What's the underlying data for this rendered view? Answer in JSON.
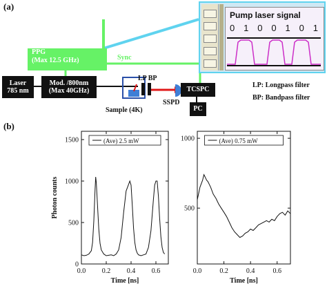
{
  "panel_a": {
    "label": "(a)",
    "ppg": {
      "line1": "PPG",
      "line2": "(Max 12.5 GHz)"
    },
    "sync": "Sync",
    "laser": {
      "line1": "Laser",
      "line2": "785 nm"
    },
    "modulator": {
      "line1": "Mod. /800nm",
      "line2": "(Max 40GHz)"
    },
    "sample": "Sample (4K)",
    "filters": "LP BP",
    "detector": "SSPD",
    "tcspc": "TCSPC",
    "pc": "PC",
    "legend": {
      "lp": "LP:  Longpass filter",
      "bp": "BP:  Bandpass filter"
    },
    "inset": {
      "title": "Pump laser signal",
      "bits": [
        "0",
        "1",
        "0",
        "0",
        "1",
        "0",
        "1"
      ]
    },
    "colors": {
      "ppg": "#66f266",
      "sync_line": "#66f266",
      "link": "#5fd3ef",
      "beam": "#e01818",
      "pulse": "#cc2ec8"
    }
  },
  "panel_b": {
    "label": "(b)"
  },
  "chart_data": [
    {
      "type": "line",
      "legend": "(Ave) 2.5 mW",
      "xlabel": "Time [ns]",
      "ylabel": "Photon counts",
      "xlim": [
        0.0,
        0.7
      ],
      "ylim": [
        0,
        1600
      ],
      "xticks": [
        "0.0",
        "0.2",
        "0.4",
        "0.6"
      ],
      "yticks": [
        "0",
        "500",
        "1000",
        "1500"
      ],
      "x": [
        0.0,
        0.02,
        0.04,
        0.06,
        0.08,
        0.09,
        0.1,
        0.11,
        0.115,
        0.12,
        0.13,
        0.14,
        0.15,
        0.16,
        0.18,
        0.2,
        0.22,
        0.24,
        0.26,
        0.28,
        0.3,
        0.32,
        0.34,
        0.36,
        0.38,
        0.39,
        0.4,
        0.41,
        0.42,
        0.43,
        0.44,
        0.45,
        0.46,
        0.47,
        0.48,
        0.5,
        0.52,
        0.54,
        0.56,
        0.58,
        0.59,
        0.6,
        0.61,
        0.62,
        0.63,
        0.64,
        0.65,
        0.66,
        0.67
      ],
      "y": [
        110,
        100,
        105,
        120,
        160,
        260,
        520,
        900,
        1050,
        980,
        700,
        420,
        250,
        170,
        120,
        100,
        105,
        110,
        100,
        120,
        170,
        320,
        620,
        880,
        960,
        1000,
        950,
        700,
        430,
        260,
        170,
        130,
        110,
        105,
        100,
        110,
        120,
        200,
        400,
        780,
        950,
        1000,
        1000,
        820,
        550,
        330,
        200,
        140,
        120
      ]
    },
    {
      "type": "line",
      "legend": "(Ave) 0.75 mW",
      "xlabel": "Time [ns]",
      "ylabel": "",
      "xlim": [
        0.0,
        0.7
      ],
      "ylim": [
        100,
        1050
      ],
      "xticks": [
        "0.0",
        "0.2",
        "0.4",
        "0.6"
      ],
      "yticks": [
        "500",
        "1000"
      ],
      "x": [
        0.0,
        0.02,
        0.04,
        0.05,
        0.06,
        0.07,
        0.08,
        0.1,
        0.12,
        0.14,
        0.16,
        0.18,
        0.2,
        0.22,
        0.24,
        0.26,
        0.28,
        0.3,
        0.32,
        0.34,
        0.36,
        0.38,
        0.4,
        0.42,
        0.44,
        0.46,
        0.48,
        0.5,
        0.52,
        0.54,
        0.56,
        0.58,
        0.6,
        0.62,
        0.64,
        0.66,
        0.68,
        0.7
      ],
      "y": [
        560,
        650,
        700,
        740,
        720,
        700,
        690,
        650,
        600,
        570,
        530,
        500,
        470,
        440,
        400,
        360,
        330,
        310,
        290,
        300,
        320,
        330,
        350,
        340,
        360,
        380,
        390,
        400,
        410,
        400,
        420,
        410,
        440,
        460,
        470,
        450,
        480,
        460
      ]
    }
  ]
}
